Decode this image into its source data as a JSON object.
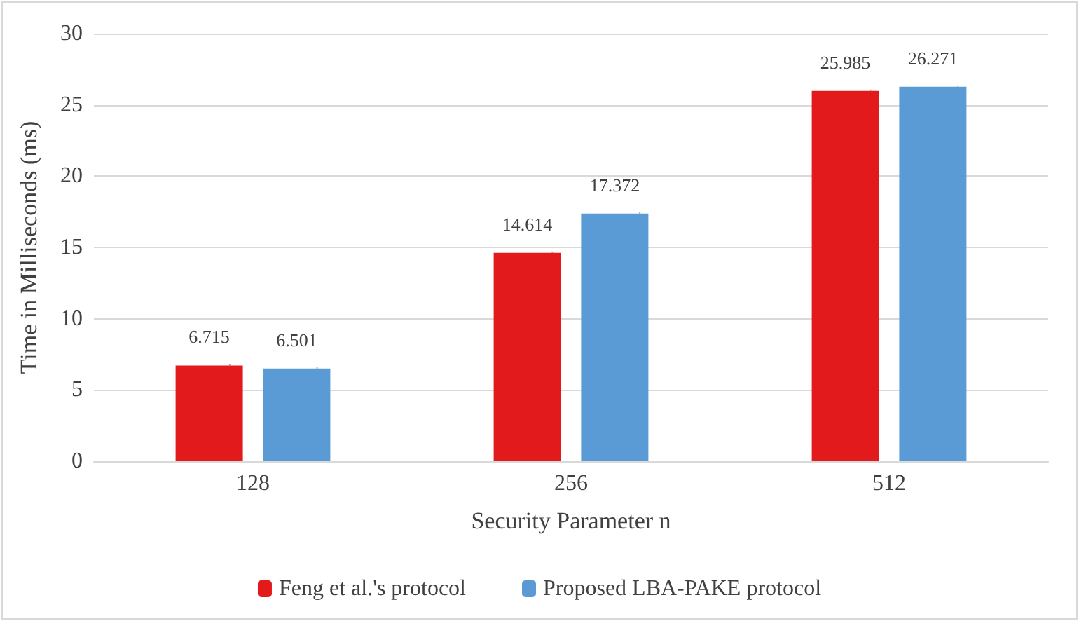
{
  "chart_data": {
    "type": "bar",
    "xlabel": "Security Parameter n",
    "ylabel": "Time in Milliseconds (ms)",
    "categories": [
      "128",
      "256",
      "512"
    ],
    "series": [
      {
        "name": "Feng et al.'s protocol",
        "color": "#e31a1c",
        "values": [
          6.715,
          14.614,
          25.985
        ]
      },
      {
        "name": "Proposed LBA-PAKE protocol",
        "color": "#5b9bd5",
        "values": [
          6.501,
          17.372,
          26.271
        ]
      }
    ],
    "ylim": [
      0,
      30
    ],
    "yticks": [
      0,
      5,
      10,
      15,
      20,
      25,
      30
    ],
    "grid": "y",
    "legend": "bottom",
    "data_labels": true
  }
}
